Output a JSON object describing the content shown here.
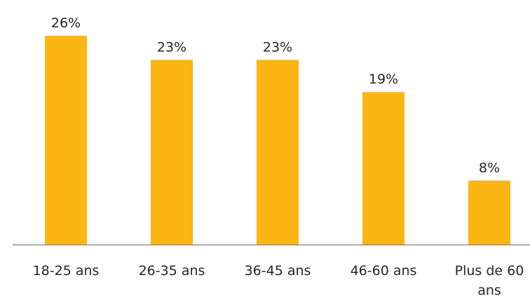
{
  "chart_data": {
    "type": "bar",
    "categories": [
      "18-25 ans",
      "26-35 ans",
      "36-45 ans",
      "46-60 ans",
      "Plus de 60 ans"
    ],
    "category_lines": [
      [
        "18-25 ans"
      ],
      [
        "26-35 ans"
      ],
      [
        "36-45 ans"
      ],
      [
        "46-60 ans"
      ],
      [
        "Plus de 60",
        "ans"
      ]
    ],
    "values": [
      26,
      23,
      23,
      19,
      8
    ],
    "data_labels": [
      "26%",
      "23%",
      "23%",
      "19%",
      "8%"
    ],
    "unit": "%",
    "title": "",
    "xlabel": "",
    "ylabel": "",
    "ylim": [
      0,
      26
    ],
    "grid": false,
    "legend": "none",
    "colors": {
      "bar": "#FBB615",
      "axis": "#7F7F7F",
      "text": "#262626"
    }
  }
}
